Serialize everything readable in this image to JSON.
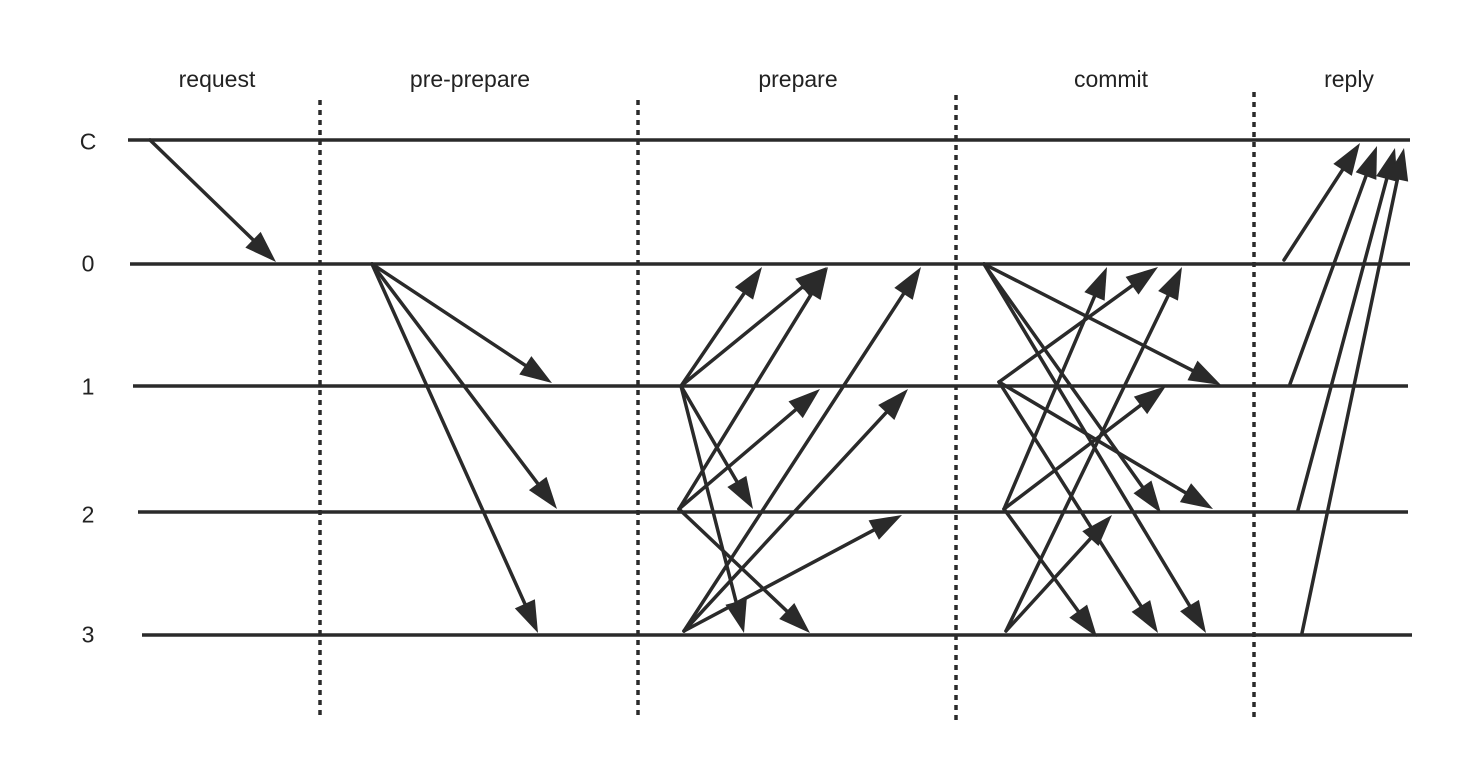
{
  "phases": [
    "request",
    "pre-prepare",
    "prepare",
    "commit",
    "reply"
  ],
  "nodes": [
    "C",
    "0",
    "1",
    "2",
    "3"
  ],
  "colors": {
    "line": "#2a2a2a",
    "text": "#222222",
    "background": "#ffffff"
  }
}
